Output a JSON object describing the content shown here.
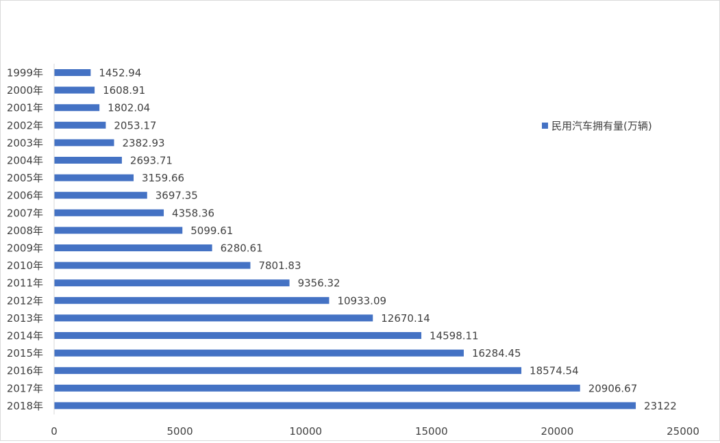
{
  "chart_data": {
    "type": "bar",
    "orientation": "horizontal",
    "categories": [
      "1999年",
      "2000年",
      "2001年",
      "2002年",
      "2003年",
      "2004年",
      "2005年",
      "2006年",
      "2007年",
      "2008年",
      "2009年",
      "2010年",
      "2011年",
      "2012年",
      "2013年",
      "2014年",
      "2015年",
      "2016年",
      "2017年",
      "2018年"
    ],
    "series": [
      {
        "name": "民用汽车拥有量(万辆)",
        "values": [
          1452.94,
          1608.91,
          1802.04,
          2053.17,
          2382.93,
          2693.71,
          3159.66,
          3697.35,
          4358.36,
          5099.61,
          6280.61,
          7801.83,
          9356.32,
          10933.09,
          12670.14,
          14598.11,
          16284.45,
          18574.54,
          20906.67,
          23122
        ],
        "labels": [
          "1452.94",
          "1608.91",
          "1802.04",
          "2053.17",
          "2382.93",
          "2693.71",
          "3159.66",
          "3697.35",
          "4358.36",
          "5099.61",
          "6280.61",
          "7801.83",
          "9356.32",
          "10933.09",
          "12670.14",
          "14598.11",
          "16284.45",
          "18574.54",
          "20906.67",
          "23122"
        ],
        "color": "#4472C4"
      }
    ],
    "xlim": [
      0,
      25000
    ],
    "xticks": [
      "0",
      "5000",
      "10000",
      "15000",
      "20000",
      "25000"
    ],
    "legend": "right",
    "grid": false,
    "colors": {
      "bar": "#4472C4",
      "text": "#404040",
      "axis": "#d9d9d9"
    }
  }
}
